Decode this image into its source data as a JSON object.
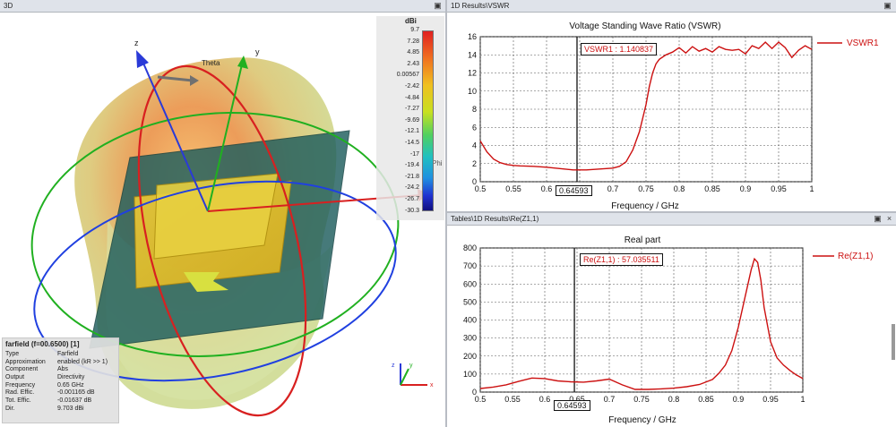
{
  "left_pane": {
    "title": "3D",
    "colorbar": {
      "unit": "dBi",
      "ticks": [
        "9.7",
        "7.28",
        "4.85",
        "2.43",
        "0.00567",
        "-2.42",
        "-4.84",
        "-7.27",
        "-9.69",
        "-12.1",
        "-14.5",
        "-17",
        "-19.4",
        "-21.8",
        "-24.2",
        "-26.7",
        "-30.3"
      ]
    },
    "axis_labels": {
      "z": "z",
      "y": "y",
      "theta": "Theta",
      "phi": "Phi"
    },
    "info": {
      "title": "farfield (f=00.6500) [1]",
      "rows": [
        {
          "key": "Type",
          "value": "Farfield"
        },
        {
          "key": "Approximation",
          "value": "enabled (kR >> 1)"
        },
        {
          "key": "Component",
          "value": "Abs"
        },
        {
          "key": "Output",
          "value": "Directivity"
        },
        {
          "key": "Frequency",
          "value": "0.65 GHz"
        },
        {
          "key": "Rad. Effic.",
          "value": "-0.001165 dB"
        },
        {
          "key": "Tot. Effic.",
          "value": "-0.01637 dB"
        },
        {
          "key": "Dir.",
          "value": "9.703 dBi"
        }
      ]
    },
    "triad": {
      "x": "x",
      "y": "y",
      "z": "z"
    }
  },
  "top_pane": {
    "title": "1D Results\\VSWR",
    "chart_title": "Voltage Standing Wave Ratio (VSWR)",
    "xlabel": "Frequency / GHz",
    "legend": "VSWR1",
    "marker_label": "VSWR1 : 1.140837",
    "marker_x_label": "0.64593"
  },
  "bottom_pane": {
    "title": "Tables\\1D Results\\Re(Z1,1)",
    "chart_title": "Real part",
    "xlabel": "Frequency / GHz",
    "legend": "Re(Z1,1)",
    "marker_label": "Re(Z1,1) : 57.035511",
    "marker_x_label": "0.64593"
  },
  "chart_data": [
    {
      "type": "line",
      "title": "Voltage Standing Wave Ratio (VSWR)",
      "xlabel": "Frequency / GHz",
      "ylabel": "",
      "xlim": [
        0.5,
        1.0
      ],
      "ylim": [
        0,
        16
      ],
      "xticks": [
        "0.5",
        "0.55",
        "0.6",
        "0.65",
        "0.7",
        "0.75",
        "0.8",
        "0.85",
        "0.9",
        "0.95",
        "1"
      ],
      "yticks": [
        "0",
        "2",
        "4",
        "6",
        "8",
        "10",
        "12",
        "14",
        "16"
      ],
      "grid": true,
      "legend_position": "right",
      "color": "#cc1010",
      "marker_x": 0.64593,
      "series": [
        {
          "name": "VSWR1",
          "x": [
            0.5,
            0.51,
            0.52,
            0.53,
            0.54,
            0.55,
            0.56,
            0.58,
            0.6,
            0.62,
            0.64,
            0.66,
            0.68,
            0.7,
            0.71,
            0.72,
            0.73,
            0.74,
            0.75,
            0.755,
            0.76,
            0.765,
            0.77,
            0.78,
            0.79,
            0.8,
            0.81,
            0.82,
            0.83,
            0.84,
            0.85,
            0.86,
            0.87,
            0.88,
            0.89,
            0.9,
            0.91,
            0.92,
            0.93,
            0.94,
            0.95,
            0.96,
            0.97,
            0.98,
            0.99,
            1.0
          ],
          "y": [
            4.5,
            3.3,
            2.5,
            2.1,
            1.9,
            1.8,
            1.75,
            1.7,
            1.6,
            1.45,
            1.3,
            1.3,
            1.4,
            1.5,
            1.7,
            2.2,
            3.5,
            5.5,
            8.5,
            10.5,
            12.0,
            13.0,
            13.5,
            14.0,
            14.3,
            14.8,
            14.2,
            14.9,
            14.4,
            14.7,
            14.3,
            14.9,
            14.6,
            14.5,
            14.6,
            14.1,
            15.0,
            14.7,
            15.4,
            14.7,
            15.4,
            14.8,
            13.7,
            14.5,
            15.0,
            14.6
          ]
        }
      ]
    },
    {
      "type": "line",
      "title": "Real part",
      "xlabel": "Frequency / GHz",
      "ylabel": "",
      "xlim": [
        0.5,
        1.0
      ],
      "ylim": [
        0,
        800
      ],
      "xticks": [
        "0.5",
        "0.55",
        "0.6",
        "0.65",
        "0.7",
        "0.75",
        "0.8",
        "0.85",
        "0.9",
        "0.95",
        "1"
      ],
      "yticks": [
        "0",
        "100",
        "200",
        "300",
        "400",
        "500",
        "600",
        "700",
        "800"
      ],
      "grid": true,
      "legend_position": "right",
      "color": "#cc1010",
      "marker_x": 0.64593,
      "series": [
        {
          "name": "Re(Z1,1)",
          "x": [
            0.5,
            0.52,
            0.54,
            0.56,
            0.58,
            0.6,
            0.62,
            0.64,
            0.66,
            0.68,
            0.7,
            0.72,
            0.74,
            0.76,
            0.78,
            0.8,
            0.82,
            0.84,
            0.86,
            0.87,
            0.88,
            0.89,
            0.9,
            0.91,
            0.92,
            0.925,
            0.93,
            0.935,
            0.94,
            0.95,
            0.96,
            0.97,
            0.98,
            0.99,
            1.0
          ],
          "y": [
            20,
            28,
            40,
            60,
            78,
            75,
            62,
            57,
            55,
            62,
            72,
            40,
            15,
            15,
            18,
            22,
            30,
            42,
            70,
            105,
            150,
            230,
            360,
            520,
            680,
            740,
            720,
            620,
            470,
            280,
            190,
            150,
            120,
            95,
            75
          ]
        }
      ]
    }
  ]
}
